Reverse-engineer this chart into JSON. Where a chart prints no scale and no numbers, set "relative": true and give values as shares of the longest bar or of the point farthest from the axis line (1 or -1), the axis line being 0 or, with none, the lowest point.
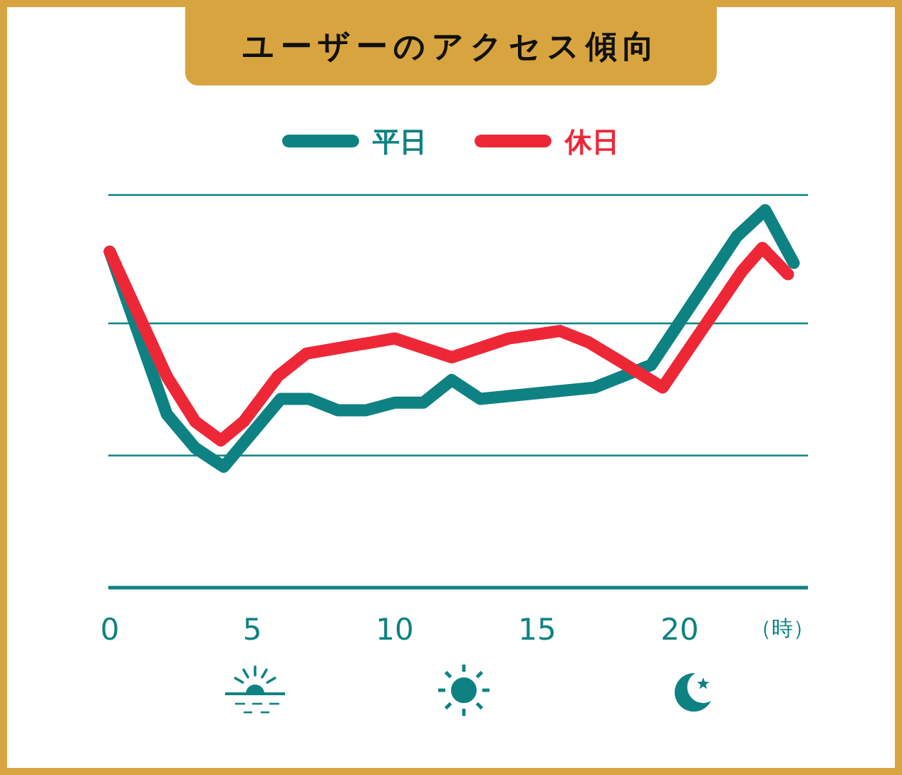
{
  "chart_data": {
    "type": "line",
    "title": "ユーザーのアクセス傾向",
    "xlabel": "（時）",
    "xlim": [
      0,
      24.5
    ],
    "xticks": [
      0,
      5,
      10,
      15,
      20
    ],
    "relative": true,
    "series": [
      {
        "name": "平日",
        "color": "#0e8282",
        "x": [
          0,
          2,
          3,
          4,
          6,
          7,
          8,
          9,
          10,
          11,
          12,
          13,
          17,
          19,
          22,
          23,
          24
        ],
        "values": [
          0.89,
          0.46,
          0.37,
          0.32,
          0.5,
          0.5,
          0.47,
          0.47,
          0.49,
          0.49,
          0.55,
          0.5,
          0.53,
          0.59,
          0.93,
          1.0,
          0.86
        ]
      },
      {
        "name": "休日",
        "color": "#ee2737",
        "x": [
          0,
          2,
          3,
          3.9,
          4.7,
          5.9,
          6.9,
          10,
          12,
          14,
          15.8,
          16.8,
          17.9,
          19.4,
          22.2,
          22.9,
          23.8
        ],
        "values": [
          0.89,
          0.56,
          0.44,
          0.39,
          0.44,
          0.56,
          0.62,
          0.66,
          0.61,
          0.66,
          0.68,
          0.65,
          0.6,
          0.53,
          0.84,
          0.9,
          0.83
        ]
      }
    ],
    "ref_lines": [
      {
        "axis": "y",
        "value": 0.35,
        "color": "#0e8282"
      },
      {
        "axis": "y",
        "value": 0.7,
        "color": "#0e8282"
      },
      {
        "axis": "y",
        "value": 1.04,
        "color": "#0e8282"
      }
    ],
    "legend": "top",
    "tick_labels": "x",
    "line_style": "solid"
  }
}
